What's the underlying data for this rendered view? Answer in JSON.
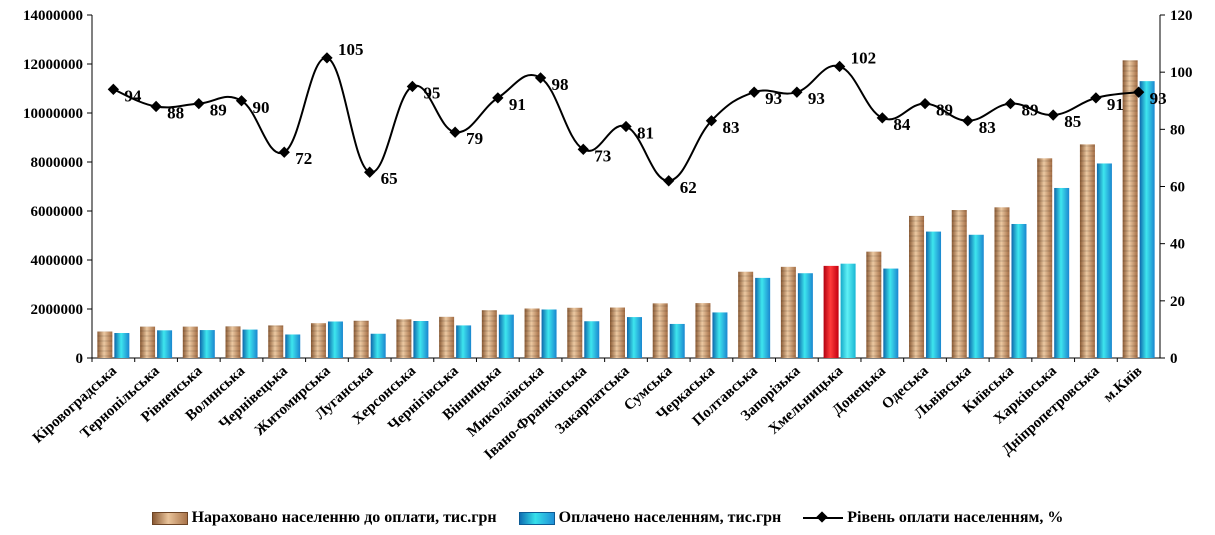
{
  "chart_data": {
    "type": "bar",
    "categories": [
      "Кіровоградська",
      "Тернопільська",
      "Рівненська",
      "Волинська",
      "Чернівецька",
      "Житомирська",
      "Луганська",
      "Херсонська",
      "Чернігівська",
      "Вінницька",
      "Миколаївська",
      "Івано-Франківська",
      "Закарпатська",
      "Сумська",
      "Черкаська",
      "Полтавська",
      "Запорізька",
      "Хмельницька",
      "Донецька",
      "Одеська",
      "Львівська",
      "Київська",
      "Харківська",
      "Дніпропетровська",
      "м.Київ"
    ],
    "series": [
      {
        "name": "Нараховано населенню до оплати, тис.грн",
        "axis": "left",
        "values": [
          1080000,
          1280000,
          1280000,
          1290000,
          1330000,
          1420000,
          1520000,
          1580000,
          1680000,
          1950000,
          2020000,
          2050000,
          2060000,
          2230000,
          2240000,
          3520000,
          3720000,
          3760000,
          4340000,
          5800000,
          6040000,
          6150000,
          8150000,
          8720000,
          12150000
        ],
        "color": "#c89a6c"
      },
      {
        "name": "Оплачено населенням, тис.грн",
        "axis": "left",
        "values": [
          1020000,
          1130000,
          1140000,
          1160000,
          960000,
          1490000,
          990000,
          1510000,
          1330000,
          1770000,
          1980000,
          1500000,
          1670000,
          1390000,
          1860000,
          3270000,
          3460000,
          3850000,
          3650000,
          5160000,
          5030000,
          5470000,
          6940000,
          7940000,
          11300000
        ],
        "color": "#2bc3e3"
      },
      {
        "name": "Рівень оплати населенням, %",
        "axis": "right",
        "type": "line",
        "values": [
          94,
          88,
          89,
          90,
          72,
          105,
          65,
          95,
          79,
          91,
          98,
          73,
          81,
          62,
          83,
          93,
          93,
          102,
          84,
          89,
          83,
          89,
          85,
          91,
          93
        ],
        "color": "#000000"
      }
    ],
    "highlight_category": "Хмельницька",
    "highlight_colors": {
      "charged": "#e8101b",
      "paid": "#1fd3e3"
    },
    "highlight_labels": [
      "Житомирська",
      "Хмельницька"
    ],
    "highlight_label_color": "#ff0000",
    "y_left": {
      "min": 0,
      "max": 14000000,
      "ticks": [
        "0",
        "2000000",
        "4000000",
        "6000000",
        "8000000",
        "10000000",
        "12000000",
        "14000000"
      ]
    },
    "y_right": {
      "min": 0,
      "max": 120,
      "ticks": [
        "0",
        "20",
        "40",
        "60",
        "80",
        "100",
        "120"
      ]
    },
    "grid": false,
    "legend_position": "bottom"
  }
}
